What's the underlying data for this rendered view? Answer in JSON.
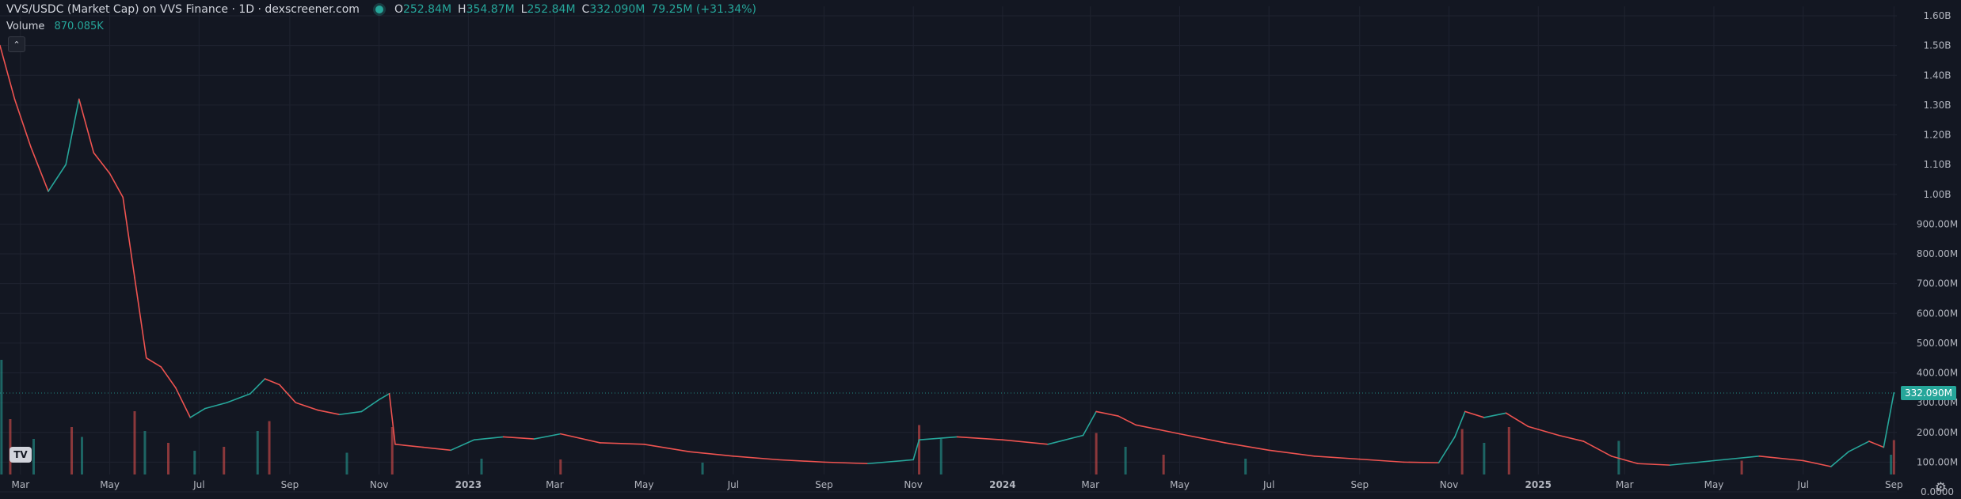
{
  "legend": {
    "title": "VVS/USDC (Market Cap) on VVS Finance · 1D · dexscreener.com",
    "ohlc": [
      {
        "k": "O",
        "v": "252.84M"
      },
      {
        "k": "H",
        "v": "354.87M"
      },
      {
        "k": "L",
        "v": "252.84M"
      },
      {
        "k": "C",
        "v": "332.090M"
      }
    ],
    "change": "79.25M (+31.34%)"
  },
  "volume_legend": {
    "label": "Volume",
    "value": "870.085K"
  },
  "logo_text": "TV",
  "colors": {
    "up": "#26a69a",
    "down": "#ef5350",
    "background": "#131722",
    "grid": "#1f2330"
  },
  "chart_data": {
    "type": "line",
    "y_ticks": [
      "1.60B",
      "1.50B",
      "1.40B",
      "1.30B",
      "1.20B",
      "1.10B",
      "1.00B",
      "900.00M",
      "800.00M",
      "700.00M",
      "600.00M",
      "500.00M",
      "400.00M",
      "300.00M",
      "200.00M",
      "100.00M",
      "0.0000"
    ],
    "ylim": [
      0,
      1600
    ],
    "x_ticks": [
      {
        "label": "Mar",
        "date": "2022-03-01"
      },
      {
        "label": "May",
        "date": "2022-05-01"
      },
      {
        "label": "Jul",
        "date": "2022-07-01"
      },
      {
        "label": "Sep",
        "date": "2022-09-01"
      },
      {
        "label": "Nov",
        "date": "2022-11-01"
      },
      {
        "label": "2023",
        "date": "2023-01-01",
        "bold": true
      },
      {
        "label": "Mar",
        "date": "2023-03-01"
      },
      {
        "label": "May",
        "date": "2023-05-01"
      },
      {
        "label": "Jul",
        "date": "2023-07-01"
      },
      {
        "label": "Sep",
        "date": "2023-09-01"
      },
      {
        "label": "Nov",
        "date": "2023-11-01"
      },
      {
        "label": "2024",
        "date": "2024-01-01",
        "bold": true
      },
      {
        "label": "Mar",
        "date": "2024-03-01"
      },
      {
        "label": "May",
        "date": "2024-05-01"
      },
      {
        "label": "Jul",
        "date": "2024-07-01"
      },
      {
        "label": "Sep",
        "date": "2024-09-01"
      },
      {
        "label": "Nov",
        "date": "2024-11-01"
      },
      {
        "label": "2025",
        "date": "2025-01-01",
        "bold": true
      },
      {
        "label": "Mar",
        "date": "2025-03-01"
      },
      {
        "label": "May",
        "date": "2025-05-01"
      },
      {
        "label": "Jul",
        "date": "2025-07-01"
      },
      {
        "label": "Sep",
        "date": "2025-09-01"
      }
    ],
    "x_range": [
      "2022-02-15",
      "2025-09-03"
    ],
    "series": [
      {
        "unit": "M",
        "points": [
          [
            "2022-02-15",
            1500
          ],
          [
            "2022-02-25",
            1320
          ],
          [
            "2022-03-08",
            1160
          ],
          [
            "2022-03-20",
            1010
          ],
          [
            "2022-04-01",
            1100
          ],
          [
            "2022-04-10",
            1320
          ],
          [
            "2022-04-20",
            1140
          ],
          [
            "2022-05-01",
            1070
          ],
          [
            "2022-05-10",
            990
          ],
          [
            "2022-05-18",
            720
          ],
          [
            "2022-05-26",
            450
          ],
          [
            "2022-06-05",
            420
          ],
          [
            "2022-06-15",
            350
          ],
          [
            "2022-06-25",
            250
          ],
          [
            "2022-07-05",
            280
          ],
          [
            "2022-07-20",
            300
          ],
          [
            "2022-08-05",
            330
          ],
          [
            "2022-08-15",
            380
          ],
          [
            "2022-08-25",
            360
          ],
          [
            "2022-09-05",
            300
          ],
          [
            "2022-09-20",
            275
          ],
          [
            "2022-10-05",
            260
          ],
          [
            "2022-10-20",
            270
          ],
          [
            "2022-11-01",
            310
          ],
          [
            "2022-11-08",
            330
          ],
          [
            "2022-11-12",
            160
          ],
          [
            "2022-12-01",
            150
          ],
          [
            "2022-12-20",
            140
          ],
          [
            "2023-01-05",
            175
          ],
          [
            "2023-01-25",
            185
          ],
          [
            "2023-02-15",
            178
          ],
          [
            "2023-03-05",
            195
          ],
          [
            "2023-04-01",
            165
          ],
          [
            "2023-05-01",
            160
          ],
          [
            "2023-06-01",
            135
          ],
          [
            "2023-07-01",
            120
          ],
          [
            "2023-08-01",
            108
          ],
          [
            "2023-09-01",
            100
          ],
          [
            "2023-10-01",
            95
          ],
          [
            "2023-11-01",
            108
          ],
          [
            "2023-11-05",
            175
          ],
          [
            "2023-12-01",
            185
          ],
          [
            "2024-01-01",
            175
          ],
          [
            "2024-02-01",
            160
          ],
          [
            "2024-02-25",
            190
          ],
          [
            "2024-03-05",
            270
          ],
          [
            "2024-03-20",
            255
          ],
          [
            "2024-04-01",
            225
          ],
          [
            "2024-05-01",
            195
          ],
          [
            "2024-06-01",
            165
          ],
          [
            "2024-07-01",
            140
          ],
          [
            "2024-08-01",
            120
          ],
          [
            "2024-09-01",
            110
          ],
          [
            "2024-10-01",
            100
          ],
          [
            "2024-10-25",
            98
          ],
          [
            "2024-11-05",
            185
          ],
          [
            "2024-11-12",
            270
          ],
          [
            "2024-11-25",
            250
          ],
          [
            "2024-12-10",
            265
          ],
          [
            "2024-12-25",
            220
          ],
          [
            "2025-01-15",
            190
          ],
          [
            "2025-02-01",
            170
          ],
          [
            "2025-02-20",
            120
          ],
          [
            "2025-03-10",
            95
          ],
          [
            "2025-04-01",
            90
          ],
          [
            "2025-05-01",
            105
          ],
          [
            "2025-06-01",
            120
          ],
          [
            "2025-07-01",
            105
          ],
          [
            "2025-07-20",
            85
          ],
          [
            "2025-08-01",
            135
          ],
          [
            "2025-08-15",
            170
          ],
          [
            "2025-08-25",
            150
          ],
          [
            "2025-09-01",
            333
          ]
        ]
      }
    ],
    "volume": {
      "unit": "K",
      "ylim": [
        0,
        3000
      ],
      "spikes": [
        [
          "2022-02-16",
          2900
        ],
        [
          "2022-02-22",
          1400
        ],
        [
          "2022-03-10",
          900
        ],
        [
          "2022-04-05",
          1200
        ],
        [
          "2022-04-12",
          950
        ],
        [
          "2022-05-18",
          1600
        ],
        [
          "2022-05-25",
          1100
        ],
        [
          "2022-06-10",
          800
        ],
        [
          "2022-06-28",
          600
        ],
        [
          "2022-07-18",
          700
        ],
        [
          "2022-08-10",
          1100
        ],
        [
          "2022-08-18",
          1350
        ],
        [
          "2022-10-10",
          550
        ],
        [
          "2022-11-10",
          1200
        ],
        [
          "2023-01-10",
          400
        ],
        [
          "2023-03-05",
          380
        ],
        [
          "2023-06-10",
          300
        ],
        [
          "2023-11-05",
          1250
        ],
        [
          "2023-11-20",
          900
        ],
        [
          "2024-03-05",
          1050
        ],
        [
          "2024-03-25",
          700
        ],
        [
          "2024-04-20",
          500
        ],
        [
          "2024-06-15",
          400
        ],
        [
          "2024-11-10",
          1150
        ],
        [
          "2024-11-25",
          800
        ],
        [
          "2024-12-12",
          1200
        ],
        [
          "2025-02-25",
          850
        ],
        [
          "2025-05-20",
          350
        ],
        [
          "2025-08-30",
          500
        ],
        [
          "2025-09-01",
          870
        ]
      ]
    },
    "last_price_label": "332.090M",
    "last_price_value": 332.09
  }
}
